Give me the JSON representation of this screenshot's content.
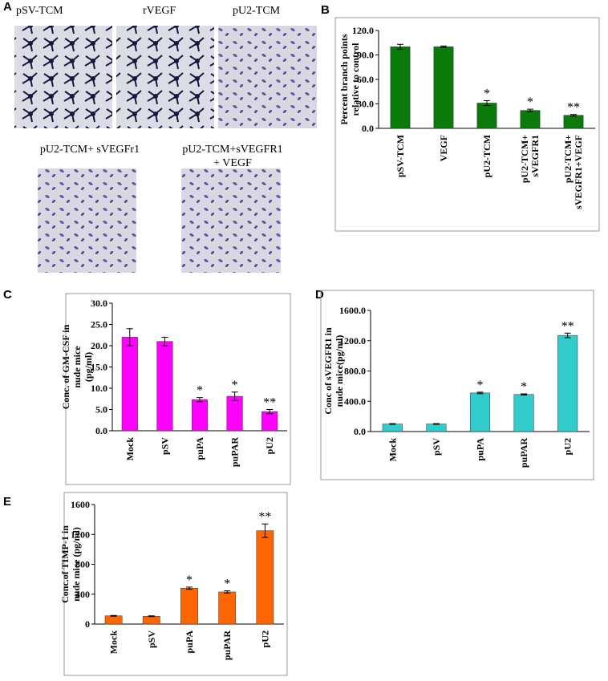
{
  "panel_labels": [
    "A",
    "B",
    "C",
    "D",
    "E"
  ],
  "image_captions": [
    "pSV-TCM",
    "rVEGF",
    "pU2-TCM",
    "pU2-TCM+ sVEGFr1",
    "pU2-TCM+sVEGFR1",
    "+ VEGF"
  ],
  "chart_data": [
    {
      "type": "bar",
      "ylabel": [
        "Percent branch points",
        "relative to control"
      ],
      "categories": [
        "pSV-TCM",
        "VEGF",
        "pU2-TCM",
        "pU2-TCM+ sVEGFR1",
        "pU2-TCM+ sVEGFR1+VEGF"
      ],
      "values": [
        100,
        100,
        31,
        22,
        16
      ],
      "errors": [
        3,
        1,
        3,
        1.5,
        1
      ],
      "annotations": [
        null,
        null,
        "*",
        "*",
        "**"
      ],
      "color": "#0a7a0a",
      "ylim": [
        0,
        120
      ],
      "yticks": [
        {
          "value": 0,
          "label": "0.0"
        },
        {
          "value": 30,
          "label": "30.0"
        },
        {
          "value": 60,
          "label": "60.0"
        },
        {
          "value": 90,
          "label": "90.0"
        },
        {
          "value": 120,
          "label": "120.0"
        }
      ]
    },
    {
      "type": "bar",
      "ylabel": [
        "Conc. of GM-CSF in",
        "nude mice",
        "(pg/ml)"
      ],
      "categories": [
        "Mock",
        "pSV",
        "puPA",
        "puPAR",
        "pU2"
      ],
      "values": [
        22,
        21,
        7.3,
        8.1,
        4.5
      ],
      "errors": [
        2,
        1,
        0.5,
        1,
        0.5
      ],
      "annotations": [
        null,
        null,
        "*",
        "*",
        "**"
      ],
      "color": "#ff00ff",
      "ylim": [
        0,
        30
      ],
      "yticks": [
        {
          "value": 0,
          "label": "0.0"
        },
        {
          "value": 5,
          "label": "5.0"
        },
        {
          "value": 10,
          "label": "10.0"
        },
        {
          "value": 15,
          "label": "15.0"
        },
        {
          "value": 20,
          "label": "20.0"
        },
        {
          "value": 25,
          "label": "25.0"
        },
        {
          "value": 30,
          "label": "30.0"
        }
      ]
    },
    {
      "type": "bar",
      "ylabel": [
        "Conc of sVEGFR1 in",
        "nude mice(pg/ml)"
      ],
      "categories": [
        "Mock",
        "pSV",
        "puPA",
        "puPAR",
        "pU2"
      ],
      "values": [
        100,
        100,
        510,
        490,
        1270
      ],
      "errors": [
        5,
        5,
        10,
        8,
        30
      ],
      "annotations": [
        null,
        null,
        "*",
        "*",
        "**"
      ],
      "color": "#33cccc",
      "ylim": [
        0,
        1600
      ],
      "yticks": [
        {
          "value": 0,
          "label": "0.0"
        },
        {
          "value": 400,
          "label": "400.0"
        },
        {
          "value": 800,
          "label": "800.0"
        },
        {
          "value": 1200,
          "label": "1200.0"
        },
        {
          "value": 1600,
          "label": "1600.0"
        }
      ]
    },
    {
      "type": "bar",
      "ylabel": [
        "Conc.of TIMP-1 in",
        "nude mice (pg/ml)"
      ],
      "categories": [
        "Mock",
        "pSV",
        "puPA",
        "puPAR",
        "pU2"
      ],
      "values": [
        110,
        105,
        480,
        430,
        1250
      ],
      "errors": [
        5,
        5,
        15,
        15,
        90
      ],
      "annotations": [
        null,
        null,
        "*",
        "*",
        "**"
      ],
      "color": "#ff6600",
      "ylim": [
        0,
        1600
      ],
      "yticks": [
        0,
        400,
        800,
        1200,
        1600
      ]
    }
  ]
}
